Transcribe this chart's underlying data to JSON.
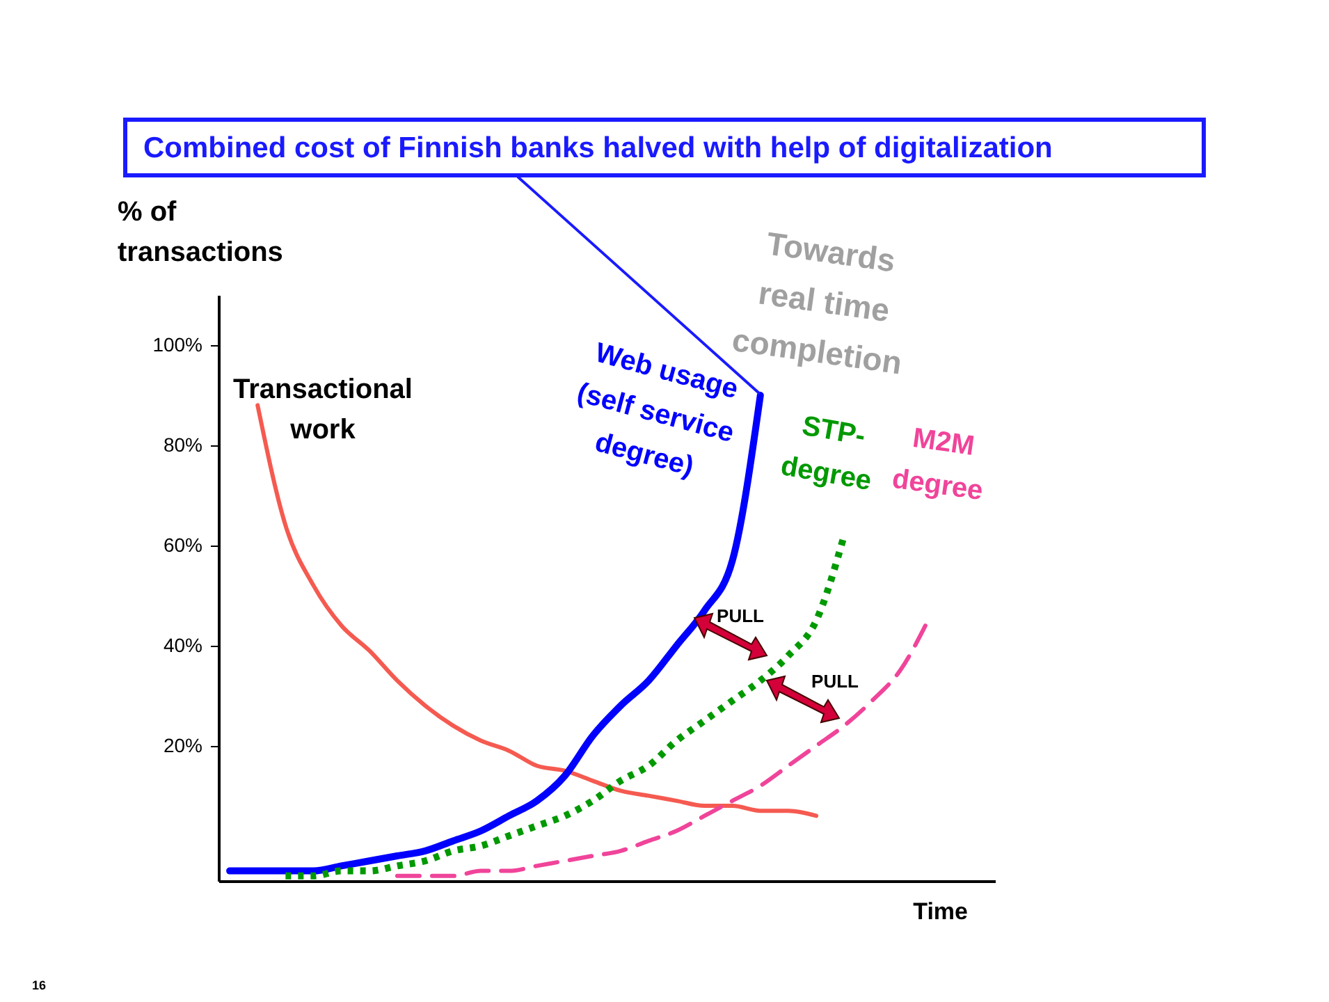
{
  "chart_data": {
    "type": "line",
    "title": "Combined cost of Finnish banks halved with help of digitalization",
    "ylabel": "% of transactions",
    "xlabel": "Time",
    "categories": [
      null,
      null,
      null,
      null,
      null,
      null,
      null,
      null,
      null,
      null,
      null,
      null,
      null,
      null,
      null,
      null,
      null,
      null,
      null,
      null,
      null,
      null,
      null,
      null,
      null,
      null,
      null,
      null
    ],
    "ylim": [
      -7,
      110
    ],
    "yticks": [
      {
        "value": 20,
        "label": "20%"
      },
      {
        "value": 40,
        "label": "40%"
      },
      {
        "value": 60,
        "label": "60%"
      },
      {
        "value": 80,
        "label": "80%"
      },
      {
        "value": 100,
        "label": "100%"
      }
    ],
    "series": [
      {
        "name": "Transactional work",
        "color": "#f55a50",
        "line_style": "solid",
        "values": [
          null,
          88,
          64,
          52,
          44,
          39,
          33,
          28,
          24,
          21,
          19,
          16,
          15,
          13,
          11,
          10,
          9,
          8,
          8,
          7,
          7,
          6,
          null,
          null,
          null,
          null,
          null,
          null
        ]
      },
      {
        "name": "Web usage (self service degree)",
        "color": "#0000ff",
        "line_style": "solid",
        "values": [
          -5,
          -5,
          -5,
          -5,
          -4,
          -3,
          -2,
          -1,
          1,
          3,
          6,
          9,
          14,
          22,
          28,
          33,
          40,
          47,
          57,
          90,
          null,
          null,
          null,
          null,
          null,
          null,
          null,
          null
        ]
      },
      {
        "name": "STP-degree",
        "color": "#009900",
        "line_style": "dotted",
        "values": [
          null,
          null,
          -6,
          -6,
          -5,
          -5,
          -4,
          -3,
          -1,
          0,
          2,
          4,
          6,
          9,
          13,
          16,
          21,
          25,
          29,
          33,
          38,
          45,
          62,
          null,
          null,
          null,
          null,
          null
        ]
      },
      {
        "name": "M2M degree",
        "color": "#f0449a",
        "line_style": "dashed",
        "values": [
          null,
          null,
          null,
          null,
          null,
          null,
          -6,
          -6,
          -6,
          -5,
          -5,
          -4,
          -3,
          -2,
          -1,
          1,
          3,
          6,
          9,
          12,
          16,
          20,
          24,
          29,
          35,
          45,
          null,
          null
        ]
      }
    ],
    "annotations": [
      "Towards real time completion",
      "PULL",
      "PULL",
      "16"
    ],
    "grid": false,
    "marker": "none",
    "tick_labels": "y"
  }
}
